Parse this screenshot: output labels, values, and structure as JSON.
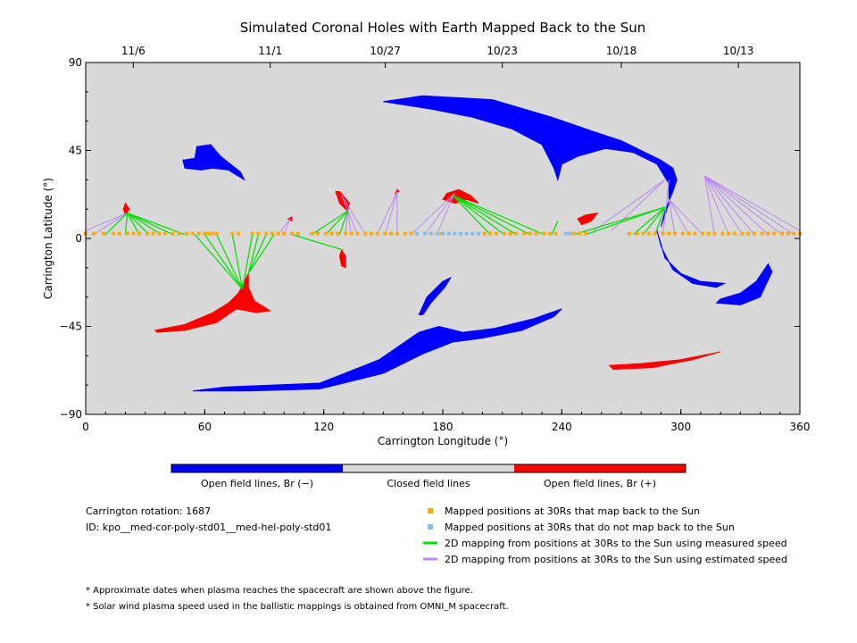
{
  "chart_data": {
    "type": "scatter",
    "title": "Simulated Coronal Holes with Earth Mapped Back to the Sun",
    "xlabel": "Carrington Longitude (°)",
    "ylabel": "Carrington Latitude (°)",
    "xlim": [
      0,
      360
    ],
    "ylim": [
      -90,
      90
    ],
    "x_ticks": [
      0,
      60,
      120,
      180,
      240,
      300,
      360
    ],
    "y_ticks": [
      {
        "value": 90,
        "label": "90"
      },
      {
        "value": 45,
        "label": "45"
      },
      {
        "value": 0,
        "label": "0"
      },
      {
        "value": -45,
        "label": "−45"
      },
      {
        "value": -90,
        "label": "−90"
      }
    ],
    "top_axis_dates": [
      {
        "lon": 24,
        "label": "11/6"
      },
      {
        "lon": 93,
        "label": "11/1"
      },
      {
        "lon": 151,
        "label": "10/27"
      },
      {
        "lon": 210,
        "label": "10/23"
      },
      {
        "lon": 270,
        "label": "10/18"
      },
      {
        "lon": 329,
        "label": "10/13"
      }
    ],
    "grid": false,
    "background_color": "#d9d9d9",
    "colors": {
      "open_negative": "#0000ff",
      "closed": "#d9d9d9",
      "open_positive": "#ff0000",
      "mapped": "#ffaa00",
      "not_mapped": "#88bbee",
      "measured": "#00dd00",
      "estimated": "#bb88ee"
    },
    "colorbar": {
      "labels": [
        "Open field lines, Br (−)",
        "Closed field lines",
        "Open field lines, Br (+)"
      ]
    },
    "regions_negative": [
      {
        "name": "north-arc",
        "points": [
          [
            150,
            70
          ],
          [
            170,
            73
          ],
          [
            205,
            71
          ],
          [
            235,
            62
          ],
          [
            255,
            55
          ],
          [
            270,
            50
          ],
          [
            282,
            44
          ],
          [
            290,
            40
          ],
          [
            296,
            36
          ],
          [
            298,
            30
          ],
          [
            296,
            24
          ],
          [
            292,
            14
          ],
          [
            290,
            6
          ],
          [
            294,
            18
          ],
          [
            294,
            28
          ],
          [
            288,
            38
          ],
          [
            276,
            44
          ],
          [
            262,
            46
          ],
          [
            248,
            42
          ],
          [
            240,
            38
          ],
          [
            238,
            30
          ],
          [
            236,
            36
          ],
          [
            230,
            48
          ],
          [
            215,
            56
          ],
          [
            195,
            62
          ],
          [
            175,
            66
          ],
          [
            150,
            70
          ]
        ]
      },
      {
        "name": "north-spot",
        "points": [
          [
            56,
            47
          ],
          [
            63,
            48
          ],
          [
            68,
            42
          ],
          [
            78,
            34
          ],
          [
            80,
            30
          ],
          [
            72,
            35
          ],
          [
            64,
            36
          ],
          [
            58,
            35
          ],
          [
            50,
            36
          ],
          [
            49,
            40
          ],
          [
            55,
            41
          ]
        ]
      },
      {
        "name": "south-band",
        "points": [
          [
            54,
            -78
          ],
          [
            82,
            -78
          ],
          [
            118,
            -77
          ],
          [
            150,
            -69
          ],
          [
            170,
            -59
          ],
          [
            185,
            -53
          ],
          [
            200,
            -51
          ],
          [
            220,
            -47
          ],
          [
            236,
            -40
          ],
          [
            240,
            -36
          ],
          [
            226,
            -41
          ],
          [
            206,
            -46
          ],
          [
            190,
            -48
          ],
          [
            178,
            -45
          ],
          [
            168,
            -48
          ],
          [
            148,
            -62
          ],
          [
            118,
            -74
          ],
          [
            70,
            -76
          ]
        ]
      },
      {
        "name": "south-spot",
        "points": [
          [
            168,
            -39
          ],
          [
            172,
            -30
          ],
          [
            180,
            -22
          ],
          [
            184,
            -20
          ],
          [
            181,
            -25
          ],
          [
            174,
            -33
          ],
          [
            170,
            -39
          ]
        ]
      },
      {
        "name": "southeast-streak",
        "points": [
          [
            288,
            4
          ],
          [
            292,
            -10
          ],
          [
            300,
            -18
          ],
          [
            310,
            -22
          ],
          [
            322,
            -23
          ],
          [
            318,
            -25
          ],
          [
            306,
            -23
          ],
          [
            296,
            -16
          ],
          [
            290,
            -4
          ]
        ]
      },
      {
        "name": "southeast-spot",
        "points": [
          [
            318,
            -33
          ],
          [
            330,
            -34
          ],
          [
            340,
            -30
          ],
          [
            346,
            -17
          ],
          [
            344,
            -13
          ],
          [
            338,
            -22
          ],
          [
            330,
            -28
          ],
          [
            320,
            -31
          ]
        ]
      }
    ],
    "regions_positive": [
      {
        "name": "south-west-spot",
        "points": [
          [
            35,
            -47
          ],
          [
            50,
            -44
          ],
          [
            64,
            -38
          ],
          [
            72,
            -33
          ],
          [
            77,
            -28
          ],
          [
            82,
            -18
          ],
          [
            82,
            -25
          ],
          [
            85,
            -32
          ],
          [
            93,
            -37
          ],
          [
            86,
            -38
          ],
          [
            76,
            -36
          ],
          [
            66,
            -43
          ],
          [
            50,
            -47
          ],
          [
            36,
            -48
          ]
        ]
      },
      {
        "name": "north-spot-a",
        "points": [
          [
            128,
            24
          ],
          [
            133,
            18
          ],
          [
            132,
            14
          ],
          [
            128,
            18
          ],
          [
            126,
            24
          ]
        ]
      },
      {
        "name": "north-spot-b",
        "points": [
          [
            182,
            23
          ],
          [
            188,
            25
          ],
          [
            194,
            22
          ],
          [
            198,
            18
          ],
          [
            192,
            20
          ],
          [
            186,
            18
          ],
          [
            180,
            20
          ]
        ]
      },
      {
        "name": "south-east-streak",
        "points": [
          [
            264,
            -65
          ],
          [
            280,
            -64
          ],
          [
            300,
            -62
          ],
          [
            320,
            -58
          ],
          [
            306,
            -62
          ],
          [
            286,
            -66
          ],
          [
            266,
            -67
          ]
        ]
      },
      {
        "name": "north-spot-c",
        "points": [
          [
            20,
            18
          ],
          [
            22,
            15
          ],
          [
            20,
            12
          ],
          [
            19,
            15
          ]
        ]
      },
      {
        "name": "north-spot-d",
        "points": [
          [
            248,
            10
          ],
          [
            252,
            12
          ],
          [
            258,
            13
          ],
          [
            255,
            9
          ],
          [
            250,
            7
          ]
        ]
      },
      {
        "name": "mid-spot",
        "points": [
          [
            129,
            -6
          ],
          [
            131,
            -9
          ],
          [
            131,
            -15
          ],
          [
            129,
            -14
          ],
          [
            128,
            -9
          ]
        ]
      },
      {
        "name": "north-spot-e",
        "points": [
          [
            157,
            25
          ],
          [
            158,
            24
          ],
          [
            156,
            23
          ]
        ]
      },
      {
        "name": "small-spot",
        "points": [
          [
            102,
            10
          ],
          [
            104,
            11
          ],
          [
            104,
            9
          ]
        ]
      }
    ],
    "mapped_positions_lon": [
      0,
      4,
      9,
      14,
      17,
      21,
      24,
      27,
      31,
      34,
      37,
      40,
      44,
      47,
      51,
      54,
      57,
      60,
      62,
      64,
      66,
      74,
      77,
      84,
      87,
      91,
      94,
      97,
      100,
      104,
      107,
      114,
      117,
      121,
      124,
      127,
      131,
      134,
      137,
      141,
      144,
      147,
      151,
      154,
      157,
      161,
      164,
      167,
      171,
      174,
      179,
      201,
      204,
      207,
      211,
      214,
      217,
      221,
      224,
      227,
      231,
      234,
      237,
      246,
      249,
      252,
      274,
      278,
      281,
      284,
      287,
      291,
      294,
      297,
      301,
      304,
      307,
      311,
      314,
      317,
      321,
      324,
      327,
      331,
      334,
      337,
      341,
      344,
      347,
      351,
      354,
      357,
      360
    ],
    "unmapped_positions_lon": [
      167,
      171,
      174,
      177,
      180,
      183,
      186,
      189,
      192,
      195,
      198,
      242,
      244
    ],
    "measured_mappings": [
      {
        "foot": [
          21,
          13
        ],
        "to": [
          10,
          2
        ]
      },
      {
        "foot": [
          21,
          13
        ],
        "to": [
          20,
          2
        ]
      },
      {
        "foot": [
          21,
          13
        ],
        "to": [
          27,
          2
        ]
      },
      {
        "foot": [
          21,
          13
        ],
        "to": [
          32,
          2
        ]
      },
      {
        "foot": [
          21,
          13
        ],
        "to": [
          38,
          2
        ]
      },
      {
        "foot": [
          21,
          13
        ],
        "to": [
          44,
          2
        ]
      },
      {
        "foot": [
          21,
          13
        ],
        "to": [
          50,
          2
        ]
      },
      {
        "foot": [
          79,
          -26
        ],
        "to": [
          55,
          2
        ]
      },
      {
        "foot": [
          79,
          -26
        ],
        "to": [
          60,
          2
        ]
      },
      {
        "foot": [
          79,
          -26
        ],
        "to": [
          66,
          2
        ]
      },
      {
        "foot": [
          79,
          -26
        ],
        "to": [
          74,
          2
        ]
      },
      {
        "foot": [
          79,
          -26
        ],
        "to": [
          84,
          2
        ]
      },
      {
        "foot": [
          82,
          -18
        ],
        "to": [
          87,
          2
        ]
      },
      {
        "foot": [
          82,
          -18
        ],
        "to": [
          91,
          2
        ]
      },
      {
        "foot": [
          82,
          -18
        ],
        "to": [
          95,
          2
        ]
      },
      {
        "foot": [
          130,
          -6
        ],
        "to": [
          104,
          2
        ]
      },
      {
        "foot": [
          132,
          14
        ],
        "to": [
          114,
          2
        ]
      },
      {
        "foot": [
          132,
          14
        ],
        "to": [
          121,
          2
        ]
      },
      {
        "foot": [
          132,
          14
        ],
        "to": [
          128,
          2
        ]
      },
      {
        "foot": [
          185,
          22
        ],
        "to": [
          204,
          2
        ]
      },
      {
        "foot": [
          185,
          22
        ],
        "to": [
          211,
          2
        ]
      },
      {
        "foot": [
          185,
          22
        ],
        "to": [
          217,
          2
        ]
      },
      {
        "foot": [
          185,
          22
        ],
        "to": [
          224,
          2
        ]
      },
      {
        "foot": [
          185,
          22
        ],
        "to": [
          231,
          2
        ]
      },
      {
        "foot": [
          238,
          9
        ],
        "to": [
          235,
          2
        ]
      },
      {
        "foot": [
          292,
          16
        ],
        "to": [
          246,
          2
        ]
      },
      {
        "foot": [
          292,
          16
        ],
        "to": [
          252,
          2
        ]
      },
      {
        "foot": [
          292,
          16
        ],
        "to": [
          276,
          2
        ]
      },
      {
        "foot": [
          292,
          16
        ],
        "to": [
          281,
          2
        ]
      },
      {
        "foot": [
          292,
          16
        ],
        "to": [
          287,
          2
        ]
      }
    ],
    "estimated_mappings": [
      {
        "foot": [
          21,
          13
        ],
        "to": [
          0,
          4
        ]
      },
      {
        "foot": [
          21,
          13
        ],
        "to": [
          4,
          2
        ]
      },
      {
        "foot": [
          103,
          10
        ],
        "to": [
          97,
          2
        ]
      },
      {
        "foot": [
          103,
          10
        ],
        "to": [
          100,
          2
        ]
      },
      {
        "foot": [
          132,
          14
        ],
        "to": [
          131,
          2
        ]
      },
      {
        "foot": [
          132,
          14
        ],
        "to": [
          134,
          2
        ]
      },
      {
        "foot": [
          129,
          22
        ],
        "to": [
          137,
          2
        ]
      },
      {
        "foot": [
          129,
          22
        ],
        "to": [
          141,
          2
        ]
      },
      {
        "foot": [
          157,
          24
        ],
        "to": [
          147,
          2
        ]
      },
      {
        "foot": [
          157,
          24
        ],
        "to": [
          151,
          2
        ]
      },
      {
        "foot": [
          157,
          24
        ],
        "to": [
          157,
          2
        ]
      },
      {
        "foot": [
          186,
          23
        ],
        "to": [
          164,
          2
        ]
      },
      {
        "foot": [
          186,
          23
        ],
        "to": [
          171,
          2
        ]
      },
      {
        "foot": [
          186,
          23
        ],
        "to": [
          177,
          2
        ]
      },
      {
        "foot": [
          292,
          30
        ],
        "to": [
          256,
          4
        ]
      },
      {
        "foot": [
          292,
          30
        ],
        "to": [
          265,
          4
        ]
      },
      {
        "foot": [
          294,
          30
        ],
        "to": [
          291,
          2
        ]
      },
      {
        "foot": [
          294,
          20
        ],
        "to": [
          297,
          2
        ]
      },
      {
        "foot": [
          294,
          20
        ],
        "to": [
          304,
          2
        ]
      },
      {
        "foot": [
          294,
          20
        ],
        "to": [
          311,
          2
        ]
      },
      {
        "foot": [
          312,
          32
        ],
        "to": [
          317,
          2
        ]
      },
      {
        "foot": [
          312,
          32
        ],
        "to": [
          324,
          2
        ]
      },
      {
        "foot": [
          312,
          32
        ],
        "to": [
          331,
          2
        ]
      },
      {
        "foot": [
          312,
          32
        ],
        "to": [
          337,
          2
        ]
      },
      {
        "foot": [
          312,
          32
        ],
        "to": [
          344,
          2
        ]
      },
      {
        "foot": [
          312,
          32
        ],
        "to": [
          351,
          2
        ]
      },
      {
        "foot": [
          312,
          32
        ],
        "to": [
          357,
          2
        ]
      },
      {
        "foot": [
          312,
          32
        ],
        "to": [
          360,
          4
        ]
      }
    ],
    "legend": [
      {
        "kind": "square",
        "color": "#ffaa00",
        "label": "Mapped positions at 30Rs that map back to the Sun"
      },
      {
        "kind": "square",
        "color": "#88bbee",
        "label": "Mapped positions at 30Rs that do not map back to the Sun"
      },
      {
        "kind": "line",
        "color": "#00dd00",
        "label": "2D mapping from positions at 30Rs to the Sun using measured speed"
      },
      {
        "kind": "line",
        "color": "#bb88ee",
        "label": "2D mapping from positions at 30Rs to the Sun using estimated speed"
      }
    ]
  },
  "info": {
    "rotation": "Carrington rotation: 1687",
    "id": "ID: kpo__med-cor-poly-std01__med-hel-poly-std01"
  },
  "footnotes": [
    "* Approximate dates when plasma reaches the spacecraft are shown above the figure.",
    "* Solar wind plasma speed used in the ballistic mappings is obtained from OMNI_M spacecraft."
  ]
}
